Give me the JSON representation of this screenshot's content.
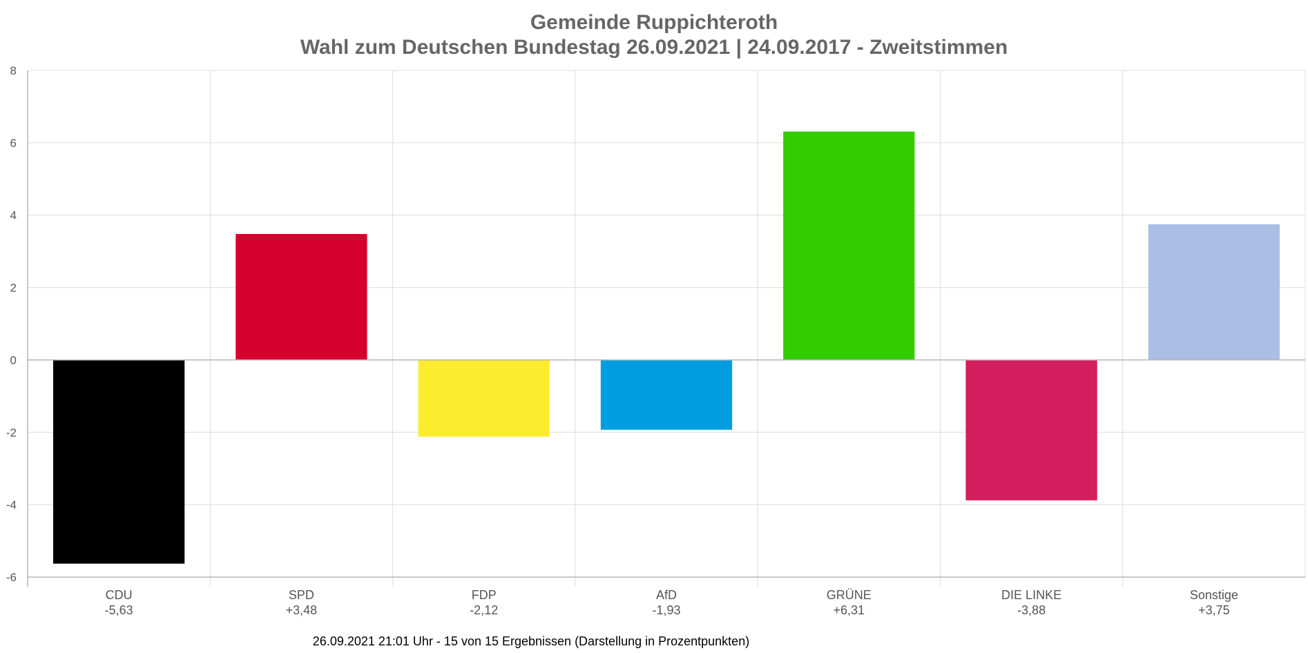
{
  "chart_data": {
    "type": "bar",
    "title": "Gemeinde Ruppichteroth",
    "subtitle": "Wahl zum Deutschen Bundestag 26.09.2021  | 24.09.2017 - Zweitstimmen",
    "categories": [
      "CDU",
      "SPD",
      "FDP",
      "AfD",
      "GRÜNE",
      "DIE LINKE",
      "Sonstige"
    ],
    "value_labels": [
      "-5,63",
      "+3,48",
      "-2,12",
      "-1,93",
      "+6,31",
      "-3,88",
      "+3,75"
    ],
    "values": [
      -5.63,
      3.48,
      -2.12,
      -1.93,
      6.31,
      -3.88,
      3.75
    ],
    "colors": [
      "#000000",
      "#d7002c",
      "#fbec2e",
      "#009ee0",
      "#33cc00",
      "#d31d5c",
      "#abbfe5"
    ],
    "ylim": [
      -6,
      8
    ],
    "yticks": [
      "8",
      "6",
      "4",
      "2",
      "0",
      "-2",
      "-4",
      "-6"
    ],
    "ytick_values": [
      8,
      6,
      4,
      2,
      0,
      -2,
      -4,
      -6
    ],
    "grid": true,
    "legend": "none",
    "footer": "26.09.2021 21:01 Uhr - 15 von 15 Ergebnissen (Darstellung in Prozentpunkten)"
  }
}
